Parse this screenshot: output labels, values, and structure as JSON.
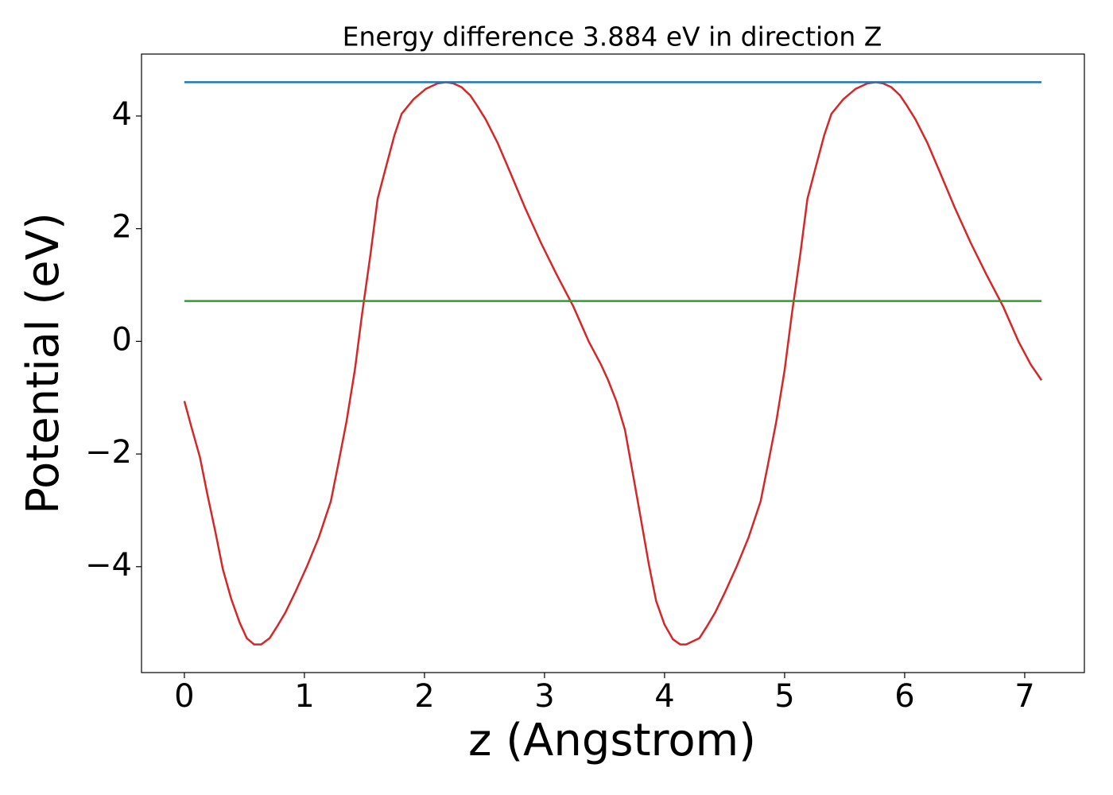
{
  "chart_data": {
    "type": "line",
    "title": "Energy difference 3.884 eV in direction Z",
    "xlabel": "z (Angstrom)",
    "ylabel": "Potential (eV)",
    "xlim": [
      -0.357,
      7.497
    ],
    "ylim": [
      -5.88,
      5.1
    ],
    "xticks": [
      0,
      1,
      2,
      3,
      4,
      5,
      6,
      7
    ],
    "yticks": [
      {
        "value": -4,
        "label": "−4"
      },
      {
        "value": -2,
        "label": "−2"
      },
      0,
      2,
      4
    ],
    "grid": false,
    "series": [
      {
        "color": "#d62728",
        "x": [
          0,
          0.06,
          0.13,
          0.19,
          0.26,
          0.32,
          0.39,
          0.46,
          0.52,
          0.58,
          0.64,
          0.71,
          0.77,
          0.84,
          0.92,
          1.02,
          1.12,
          1.22,
          1.28,
          1.35,
          1.42,
          1.48,
          1.55,
          1.61,
          1.68,
          1.75,
          1.81,
          1.91,
          2.01,
          2.11,
          2.18,
          2.24,
          2.31,
          2.38,
          2.44,
          2.51,
          2.61,
          2.71,
          2.84,
          2.97,
          3.1,
          3.24,
          3.37,
          3.47,
          3.53,
          3.6,
          3.67,
          3.73,
          3.8,
          3.87,
          3.93,
          4.0,
          4.07,
          4.13,
          4.18,
          4.29,
          4.35,
          4.42,
          4.5,
          4.6,
          4.7,
          4.8,
          4.86,
          4.93,
          5.0,
          5.06,
          5.13,
          5.19,
          5.26,
          5.33,
          5.39,
          5.49,
          5.59,
          5.69,
          5.76,
          5.82,
          5.89,
          5.96,
          6.02,
          6.09,
          6.19,
          6.29,
          6.42,
          6.55,
          6.68,
          6.82,
          6.95,
          7.05,
          7.14
        ],
        "values": [
          -1.06,
          -1.53,
          -2.06,
          -2.7,
          -3.4,
          -4.04,
          -4.57,
          -4.99,
          -5.27,
          -5.38,
          -5.38,
          -5.27,
          -5.07,
          -4.82,
          -4.47,
          -4.0,
          -3.48,
          -2.84,
          -2.2,
          -1.43,
          -0.51,
          0.48,
          1.54,
          2.53,
          3.1,
          3.66,
          4.04,
          4.3,
          4.48,
          4.58,
          4.6,
          4.58,
          4.51,
          4.37,
          4.18,
          3.94,
          3.52,
          3.02,
          2.36,
          1.75,
          1.19,
          0.62,
          -0.01,
          -0.41,
          -0.69,
          -1.07,
          -1.57,
          -2.28,
          -3.12,
          -3.97,
          -4.61,
          -5.03,
          -5.29,
          -5.38,
          -5.38,
          -5.27,
          -5.07,
          -4.82,
          -4.47,
          -4.0,
          -3.48,
          -2.84,
          -2.2,
          -1.43,
          -0.51,
          0.48,
          1.54,
          2.53,
          3.1,
          3.66,
          4.04,
          4.3,
          4.48,
          4.58,
          4.6,
          4.58,
          4.51,
          4.37,
          4.18,
          3.94,
          3.52,
          3.02,
          2.36,
          1.75,
          1.19,
          0.62,
          -0.01,
          -0.41,
          -0.69
        ]
      },
      {
        "color": "#1f77b4",
        "x": [
          0,
          7.14
        ],
        "values": [
          4.6,
          4.6
        ]
      },
      {
        "color": "#2ca02c",
        "x": [
          0,
          7.14
        ],
        "values": [
          0.716,
          0.716
        ]
      }
    ]
  }
}
